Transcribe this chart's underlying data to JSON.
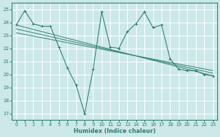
{
  "xlabel": "Humidex (Indice chaleur)",
  "bg_color": "#cce8e8",
  "grid_color": "#ffffff",
  "line_color": "#2e7d6e",
  "xlim": [
    -0.5,
    23.5
  ],
  "ylim": [
    16.5,
    25.5
  ],
  "yticks": [
    17,
    18,
    19,
    20,
    21,
    22,
    23,
    24,
    25
  ],
  "xticks": [
    0,
    1,
    2,
    3,
    4,
    5,
    6,
    7,
    8,
    9,
    10,
    11,
    12,
    13,
    14,
    15,
    16,
    17,
    18,
    19,
    20,
    21,
    22,
    23
  ],
  "series1": [
    23.8,
    24.9,
    23.9,
    23.7,
    23.7,
    22.1,
    20.5,
    19.2,
    17.0,
    20.4,
    24.8,
    22.1,
    22.0,
    23.3,
    23.9,
    24.8,
    23.6,
    23.8,
    21.2,
    20.4,
    20.3,
    20.3,
    20.0,
    19.9
  ],
  "trend1_x": [
    0,
    23
  ],
  "trend1_y": [
    23.8,
    19.9
  ],
  "trend2_x": [
    0,
    23
  ],
  "trend2_y": [
    23.5,
    20.1
  ],
  "trend3_x": [
    0,
    23
  ],
  "trend3_y": [
    23.2,
    20.3
  ]
}
